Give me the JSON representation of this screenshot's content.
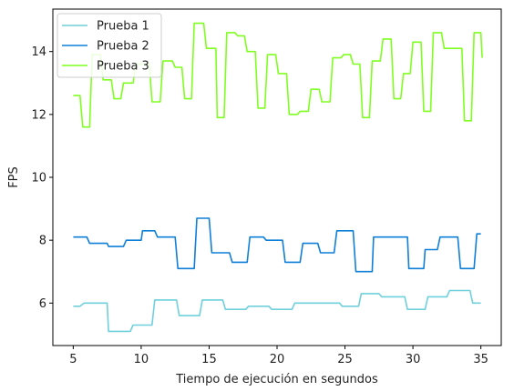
{
  "chart_data": {
    "type": "line",
    "xlabel": "Tiempo de ejecución en segundos",
    "ylabel": "FPS",
    "xlim": [
      3.5,
      36.5
    ],
    "ylim": [
      4.65,
      15.35
    ],
    "xticks": [
      5,
      10,
      15,
      20,
      25,
      30,
      35
    ],
    "yticks": [
      6,
      8,
      10,
      12,
      14
    ],
    "grid": false,
    "legend_position": "upper-left",
    "series": [
      {
        "name": "Prueba 1",
        "color": "#6fd0dc",
        "points": [
          [
            5,
            5.9
          ],
          [
            5.5,
            5.9
          ],
          [
            5.8,
            6.0
          ],
          [
            7.5,
            6.0
          ],
          [
            7.6,
            5.1
          ],
          [
            9.2,
            5.1
          ],
          [
            9.4,
            5.3
          ],
          [
            10.8,
            5.3
          ],
          [
            11,
            6.1
          ],
          [
            12.6,
            6.1
          ],
          [
            12.8,
            5.6
          ],
          [
            14.3,
            5.6
          ],
          [
            14.5,
            6.1
          ],
          [
            16,
            6.1
          ],
          [
            16.2,
            5.8
          ],
          [
            17.7,
            5.8
          ],
          [
            17.9,
            5.9
          ],
          [
            19.4,
            5.9
          ],
          [
            19.6,
            5.8
          ],
          [
            21.1,
            5.8
          ],
          [
            21.3,
            6.0
          ],
          [
            24.6,
            6.0
          ],
          [
            24.8,
            5.9
          ],
          [
            26,
            5.9
          ],
          [
            26.2,
            6.3
          ],
          [
            27.5,
            6.3
          ],
          [
            27.7,
            6.2
          ],
          [
            29.4,
            6.2
          ],
          [
            29.6,
            5.8
          ],
          [
            30.9,
            5.8
          ],
          [
            31.1,
            6.2
          ],
          [
            32.5,
            6.2
          ],
          [
            32.7,
            6.4
          ],
          [
            34.2,
            6.4
          ],
          [
            34.4,
            6.0
          ],
          [
            35,
            6.0
          ]
        ]
      },
      {
        "name": "Prueba 2",
        "color": "#0f7fd8",
        "points": [
          [
            5,
            8.1
          ],
          [
            6,
            8.1
          ],
          [
            6.2,
            7.9
          ],
          [
            7.5,
            7.9
          ],
          [
            7.6,
            7.8
          ],
          [
            8.7,
            7.8
          ],
          [
            8.9,
            8.0
          ],
          [
            10,
            8.0
          ],
          [
            10.1,
            8.3
          ],
          [
            11,
            8.3
          ],
          [
            11.2,
            8.1
          ],
          [
            12.5,
            8.1
          ],
          [
            12.7,
            7.1
          ],
          [
            13.9,
            7.1
          ],
          [
            14.1,
            8.7
          ],
          [
            15,
            8.7
          ],
          [
            15.2,
            7.6
          ],
          [
            16.5,
            7.6
          ],
          [
            16.7,
            7.3
          ],
          [
            17.8,
            7.3
          ],
          [
            18,
            8.1
          ],
          [
            19,
            8.1
          ],
          [
            19.2,
            8.0
          ],
          [
            20.4,
            8.0
          ],
          [
            20.6,
            7.3
          ],
          [
            21.7,
            7.3
          ],
          [
            21.9,
            7.9
          ],
          [
            23,
            7.9
          ],
          [
            23.2,
            7.6
          ],
          [
            24.2,
            7.6
          ],
          [
            24.4,
            8.3
          ],
          [
            25.6,
            8.3
          ],
          [
            25.8,
            7.0
          ],
          [
            27,
            7.0
          ],
          [
            27.1,
            8.1
          ],
          [
            29.6,
            8.1
          ],
          [
            29.7,
            7.1
          ],
          [
            30.8,
            7.1
          ],
          [
            30.9,
            7.7
          ],
          [
            31.8,
            7.7
          ],
          [
            32,
            8.1
          ],
          [
            33.3,
            8.1
          ],
          [
            33.5,
            7.1
          ],
          [
            34.5,
            7.1
          ],
          [
            34.7,
            8.2
          ],
          [
            35,
            8.2
          ]
        ]
      },
      {
        "name": "Prueba 3",
        "color": "#7fff1f",
        "points": [
          [
            5,
            12.6
          ],
          [
            5.5,
            12.6
          ],
          [
            5.7,
            11.6
          ],
          [
            6.2,
            11.6
          ],
          [
            6.4,
            13.9
          ],
          [
            7,
            13.9
          ],
          [
            7.2,
            13.1
          ],
          [
            7.8,
            13.1
          ],
          [
            8,
            12.5
          ],
          [
            8.5,
            12.5
          ],
          [
            8.7,
            13.0
          ],
          [
            9.4,
            13.0
          ],
          [
            9.6,
            13.6
          ],
          [
            10.6,
            13.6
          ],
          [
            10.8,
            12.4
          ],
          [
            11.4,
            12.4
          ],
          [
            11.6,
            13.7
          ],
          [
            12.3,
            13.7
          ],
          [
            12.5,
            13.5
          ],
          [
            13,
            13.5
          ],
          [
            13.2,
            12.5
          ],
          [
            13.7,
            12.5
          ],
          [
            13.9,
            14.9
          ],
          [
            14.6,
            14.9
          ],
          [
            14.8,
            14.1
          ],
          [
            15.5,
            14.1
          ],
          [
            15.6,
            11.9
          ],
          [
            16.1,
            11.9
          ],
          [
            16.3,
            14.6
          ],
          [
            16.9,
            14.6
          ],
          [
            17.1,
            14.5
          ],
          [
            17.6,
            14.5
          ],
          [
            17.8,
            14.0
          ],
          [
            18.4,
            14.0
          ],
          [
            18.6,
            12.2
          ],
          [
            19.1,
            12.2
          ],
          [
            19.3,
            13.9
          ],
          [
            19.9,
            13.9
          ],
          [
            20.1,
            13.3
          ],
          [
            20.7,
            13.3
          ],
          [
            20.9,
            12.0
          ],
          [
            21.5,
            12.0
          ],
          [
            21.7,
            12.1
          ],
          [
            22.3,
            12.1
          ],
          [
            22.5,
            12.8
          ],
          [
            23.1,
            12.8
          ],
          [
            23.3,
            12.4
          ],
          [
            23.9,
            12.4
          ],
          [
            24.1,
            13.8
          ],
          [
            24.7,
            13.8
          ],
          [
            24.9,
            13.9
          ],
          [
            25.4,
            13.9
          ],
          [
            25.6,
            13.6
          ],
          [
            26.1,
            13.6
          ],
          [
            26.3,
            11.9
          ],
          [
            26.8,
            11.9
          ],
          [
            27,
            13.7
          ],
          [
            27.6,
            13.7
          ],
          [
            27.8,
            14.4
          ],
          [
            28.4,
            14.4
          ],
          [
            28.6,
            12.5
          ],
          [
            29.1,
            12.5
          ],
          [
            29.3,
            13.3
          ],
          [
            29.8,
            13.3
          ],
          [
            30,
            14.3
          ],
          [
            30.6,
            14.3
          ],
          [
            30.8,
            12.1
          ],
          [
            31.3,
            12.1
          ],
          [
            31.5,
            14.6
          ],
          [
            32.1,
            14.6
          ],
          [
            32.3,
            14.1
          ],
          [
            33.6,
            14.1
          ],
          [
            33.8,
            11.8
          ],
          [
            34.3,
            11.8
          ],
          [
            34.5,
            14.6
          ],
          [
            35,
            14.6
          ],
          [
            35.1,
            13.8
          ]
        ]
      }
    ]
  }
}
